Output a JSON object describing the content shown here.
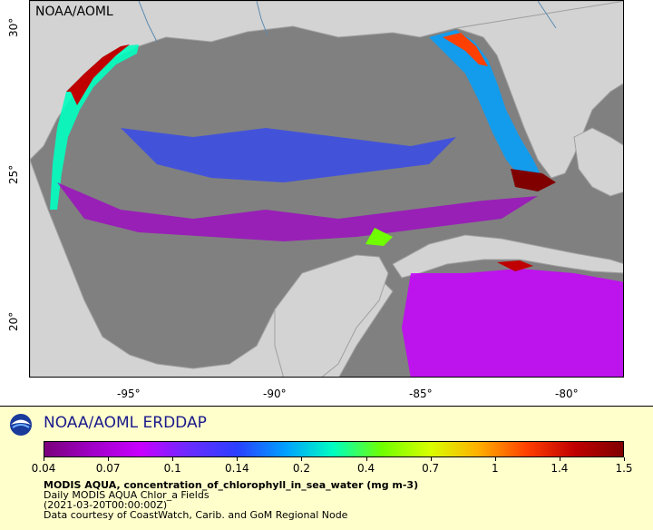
{
  "map": {
    "agency": "NOAA/AOML",
    "latitude_labels": [
      "30°",
      "25°",
      "20°"
    ],
    "longitude_labels": [
      "-95°",
      "-90°",
      "-85°",
      "-80°"
    ],
    "colors": {
      "ocean_no_data": "#808080",
      "land": "#d3d3d3",
      "land_border": "#a0a0a0",
      "rivers": "#5a8ab0"
    }
  },
  "legend": {
    "title": "NOAA/AOML ERDDAP",
    "colorbar_ticks": [
      "0.04",
      "0.07",
      "0.1",
      "0.14",
      "0.2",
      "0.4",
      "0.7",
      "1",
      "1.4",
      "1.5"
    ],
    "variable": "MODIS AQUA, concentration_of_chlorophyll_in_sea_water (mg m-3)",
    "dataset": "Daily MODIS AQUA Chlor_a Fields",
    "time": "(2021-03-20T00:00:00Z)",
    "credit": "Data courtesy of CoastWatch, Carib. and GoM Regional Node",
    "colormap": [
      "#7a007a",
      "#a000c8",
      "#c800ff",
      "#6a2cff",
      "#2a40ff",
      "#00a0ff",
      "#00ffc0",
      "#70ff00",
      "#d8ff00",
      "#ffb000",
      "#ff4000",
      "#c00000",
      "#800000"
    ]
  },
  "icons": {
    "logo": "noaa-logo-icon"
  }
}
